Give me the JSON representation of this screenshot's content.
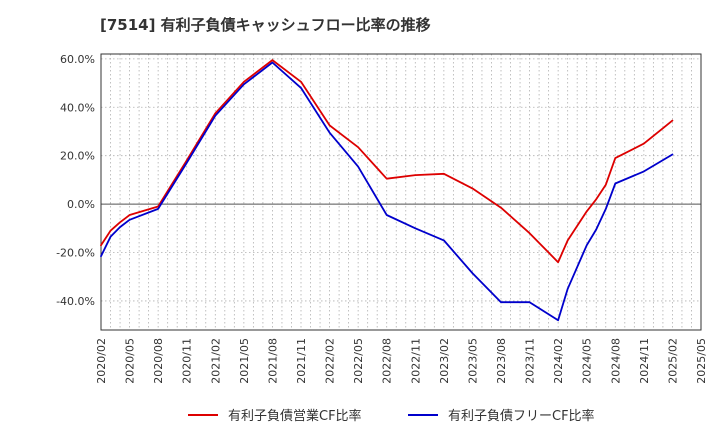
{
  "chart_data": {
    "type": "line",
    "title": "[7514]  有利子負債キャッシュフロー比率の推移",
    "xlabel": "",
    "ylabel": "",
    "ylim": [
      -52,
      62
    ],
    "y_ticks": [
      "-40.0%",
      "-20.0%",
      "0.0%",
      "20.0%",
      "40.0%",
      "60.0%"
    ],
    "y_tick_values": [
      -40,
      -20,
      0,
      20,
      40,
      60
    ],
    "x_ticks": [
      "2020/02",
      "2020/05",
      "2020/08",
      "2020/11",
      "2021/02",
      "2021/05",
      "2021/08",
      "2021/11",
      "2022/02",
      "2022/05",
      "2022/08",
      "2022/11",
      "2023/02",
      "2023/05",
      "2023/08",
      "2023/11",
      "2024/02",
      "2024/05",
      "2024/08",
      "2024/11",
      "2025/02",
      "2025/05"
    ],
    "grid": true,
    "legend_position": "bottom",
    "x": [
      "2020/02",
      "2020/03",
      "2020/04",
      "2020/05",
      "2020/08",
      "2020/11",
      "2021/02",
      "2021/05",
      "2021/08",
      "2021/11",
      "2022/02",
      "2022/05",
      "2022/08",
      "2022/11",
      "2023/02",
      "2023/05",
      "2023/08",
      "2023/11",
      "2024/02",
      "2024/03",
      "2024/05",
      "2024/06",
      "2024/07",
      "2024/08",
      "2024/11",
      "2025/02"
    ],
    "series": [
      {
        "name": "有利子負債営業CF比率",
        "color": "#dd0000",
        "values": [
          -17,
          -11,
          -7.5,
          -4.5,
          -1,
          18,
          37.5,
          50.5,
          59.5,
          50.5,
          32.5,
          23.5,
          10.5,
          12,
          12.5,
          6.5,
          -1.5,
          -12,
          -24,
          -15,
          -3,
          2,
          8,
          19,
          25,
          34.5
        ]
      },
      {
        "name": "有利子負債フリーCF比率",
        "color": "#0000cc",
        "values": [
          -21.5,
          -13.5,
          -9.5,
          -6.5,
          -2,
          17,
          36.5,
          49.5,
          58.5,
          48,
          29.5,
          15.5,
          -4.5,
          -10,
          -15,
          -28.5,
          -40.5,
          -40.5,
          -48,
          -35,
          -17,
          -10.5,
          -2,
          8.5,
          13.5,
          20.5
        ]
      }
    ]
  }
}
